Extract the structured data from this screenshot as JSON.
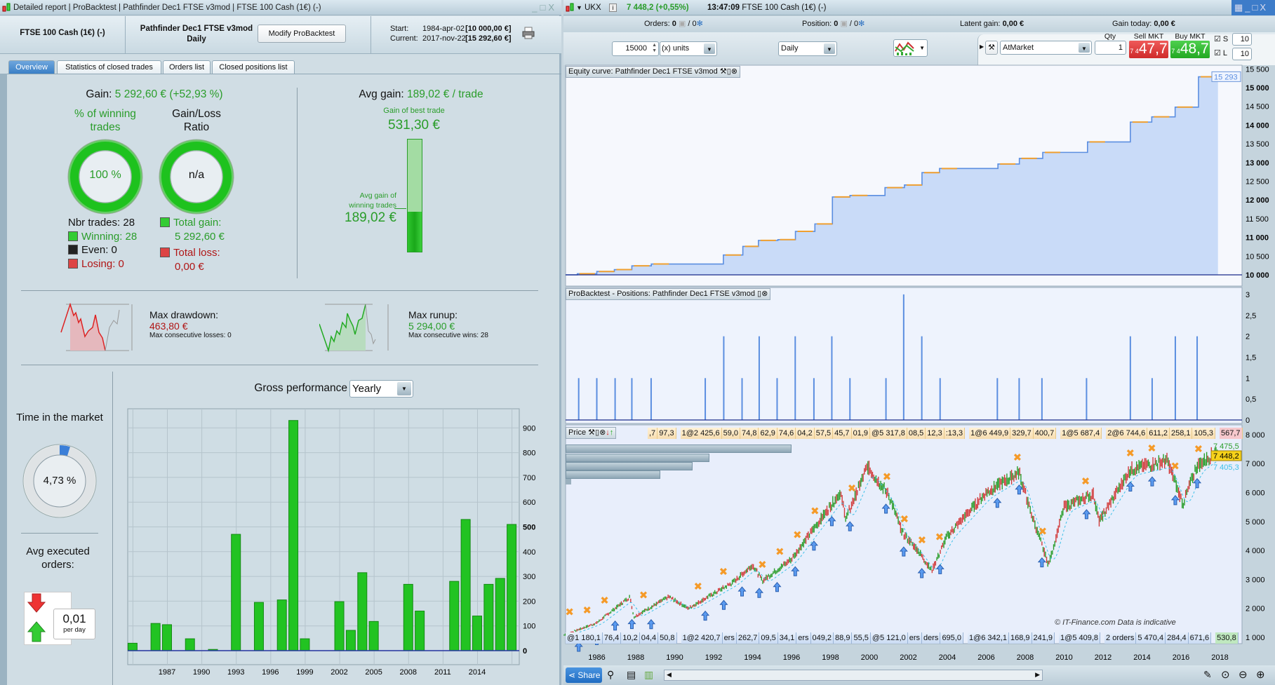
{
  "left_window": {
    "title_parts": [
      "Detailed report",
      "ProBacktest",
      "Pathfinder Dec1 FTSE v3mod",
      "FTSE 100 Cash (1€) (-)"
    ],
    "instrument": "FTSE 100 Cash (1€) (-)",
    "strategy_name": "Pathfinder Dec1 FTSE v3mod",
    "timeframe": "Daily",
    "modify_button": "Modify ProBacktest",
    "start_label": "Start:",
    "start_date": "1984-apr-02",
    "start_value": "[10 000,00 €]",
    "current_label": "Current:",
    "current_date": "2017-nov-22",
    "current_value": "[15 292,60 €]",
    "tabs": [
      "Overview",
      "Statistics of closed trades",
      "Orders list",
      "Closed positions list"
    ],
    "active_tab": "Overview"
  },
  "overview": {
    "gain_label": "Gain:",
    "gain_value": "5 292,60 € (+52,93 %)",
    "winning_pct_title": "% of winning trades",
    "winning_pct": "100 %",
    "winning_fraction": 1.0,
    "ratio_title": "Gain/Loss Ratio",
    "ratio_value": "n/a",
    "nbr_trades": "Nbr trades: 28",
    "winning": "Winning: 28",
    "even": "Even: 0",
    "losing": "Losing: 0",
    "total_gain_label": "Total gain:",
    "total_gain": "5 292,60 €",
    "total_loss_label": "Total loss:",
    "total_loss": "0,00 €",
    "avg_gain_label": "Avg gain:",
    "avg_gain_value": "189,02 € / trade",
    "best_trade_label": "Gain of best trade",
    "best_trade_value": "531,30 €",
    "avg_winning_label": "Avg gain of winning trades",
    "avg_winning_value": "189,02 €",
    "avg_winning_ratio": 0.356,
    "max_drawdown_label": "Max drawdown:",
    "max_drawdown": "463,80 €",
    "max_consec_losses": "Max consecutive losses: 0",
    "max_runup_label": "Max runup:",
    "max_runup": "5 294,00 €",
    "max_consec_wins": "Max consecutive wins: 28",
    "time_market_title": "Time in the market",
    "time_market_value": "4,73 %",
    "time_market_fraction": 0.0473,
    "avg_orders_title": "Avg executed orders:",
    "avg_orders_value": "0,01",
    "avg_orders_unit": "per day",
    "gross_perf_label": "Gross performance",
    "gross_perf_period": "Yearly"
  },
  "right_window": {
    "symbol": "UKX",
    "last_price": "7 448,2 (+0,55%)",
    "time": "13:47:09",
    "instrument": "FTSE 100 Cash (1€) (-)",
    "orders_label": "Orders:",
    "orders_value": "0",
    "orders_total": "/ 0",
    "position_label": "Position:",
    "position_value": "0",
    "position_total": "/ 0",
    "latent_label": "Latent gain:",
    "latent_value": "0,00 €",
    "gain_today_label": "Gain today:",
    "gain_today_value": "0,00 €",
    "units_value": "15000",
    "units_type": "(x) units",
    "timeframe": "Daily",
    "order_type": "AtMarket",
    "qty_label": "Qty",
    "qty_value": "1",
    "sell_label": "Sell MKT",
    "sell_prefix": "7 4",
    "sell_price": "47,7",
    "buy_label": "Buy MKT",
    "buy_prefix": "7 4",
    "buy_price": "48,7",
    "s_label": "S",
    "s_value": "10",
    "l_label": "L",
    "l_value": "10",
    "equity_title": "Equity curve: Pathfinder Dec1 FTSE v3mod",
    "positions_title": "ProBacktest - Positions: Pathfinder Dec1 FTSE v3mod",
    "price_title": "Price",
    "watermark": "© IT-Finance.com Data is indicative",
    "share_label": "Share",
    "colors": {
      "up": "#2a9d2a",
      "down": "#d23b3b",
      "equity_line": "#5b8ee0",
      "equity_fill": "#c9dbf8",
      "orange": "#f0a030"
    }
  },
  "chart_data": [
    {
      "type": "bar",
      "title": "Gross performance (Yearly)",
      "categories": [
        1984,
        1986,
        1987,
        1989,
        1991,
        1993,
        1995,
        1997,
        1998,
        1999,
        2002,
        2003,
        2004,
        2005,
        2008,
        2009,
        2012,
        2013,
        2014,
        2015,
        2016,
        2017
      ],
      "values": [
        30,
        110,
        105,
        48,
        5,
        470,
        195,
        205,
        930,
        48,
        198,
        82,
        315,
        118,
        268,
        160,
        280,
        530,
        140,
        268,
        292,
        510
      ],
      "x_ticks": [
        "1987",
        "1990",
        "1993",
        "1996",
        "1999",
        "2002",
        "2005",
        "2008",
        "2011",
        "2014"
      ],
      "y_ticks": [
        "0",
        "100",
        "200",
        "300",
        "400",
        "500",
        "600",
        "700",
        "800",
        "900"
      ],
      "ylim": [
        -150,
        1000
      ]
    },
    {
      "type": "line",
      "title": "Equity curve",
      "steps": [
        [
          1984.4,
          10000
        ],
        [
          1985.0,
          10030
        ],
        [
          1986.0,
          10090
        ],
        [
          1986.9,
          10140
        ],
        [
          1987.8,
          10240
        ],
        [
          1988.8,
          10290
        ],
        [
          1992.5,
          10530
        ],
        [
          1993.5,
          10760
        ],
        [
          1994.3,
          10920
        ],
        [
          1995.3,
          10940
        ],
        [
          1996.2,
          11160
        ],
        [
          1997.2,
          11360
        ],
        [
          1998.1,
          12080
        ],
        [
          1999.0,
          12120
        ],
        [
          2000.8,
          12330
        ],
        [
          2001.8,
          12400
        ],
        [
          2002.7,
          12730
        ],
        [
          2003.6,
          12840
        ],
        [
          2006.6,
          12960
        ],
        [
          2007.7,
          13110
        ],
        [
          2008.9,
          13270
        ],
        [
          2011.2,
          13550
        ],
        [
          2013.4,
          14080
        ],
        [
          2014.5,
          14220
        ],
        [
          2015.7,
          14480
        ],
        [
          2016.9,
          15290
        ],
        [
          2017.9,
          15290
        ]
      ],
      "y_ticks": [
        "10 000",
        "10 500",
        "11 000",
        "11 500",
        "12 000",
        "12 500",
        "13 000",
        "13 500",
        "14 000",
        "14 500",
        "15 000",
        "15 500"
      ],
      "last_label": "15 293"
    },
    {
      "type": "bar",
      "title": "Positions",
      "x": [
        1985.07,
        1986.0,
        1986.94,
        1987.8,
        1988.79,
        1991.57,
        1992.52,
        1993.46,
        1994.34,
        1995.26,
        1996.19,
        1997.15,
        1998.07,
        1999.0,
        2000.85,
        2001.76,
        2002.69,
        2003.63,
        2006.57,
        2007.69,
        2008.86,
        2011.15,
        2013.4,
        2014.52,
        2015.71,
        2016.83
      ],
      "values": [
        1,
        1,
        1,
        1,
        1,
        1,
        2,
        1,
        2,
        1,
        2,
        1,
        2,
        1,
        1,
        3,
        2,
        1,
        1,
        1,
        1,
        1,
        2,
        1,
        2,
        2
      ],
      "y_ticks": [
        "0",
        "0,5",
        "1",
        "1,5",
        "2",
        "2,5",
        "3"
      ]
    },
    {
      "type": "line",
      "title": "Price",
      "points": [
        [
          1984.2,
          1050
        ],
        [
          1986,
          1500
        ],
        [
          1987.7,
          2400
        ],
        [
          1987.9,
          1700
        ],
        [
          1989.7,
          2400
        ],
        [
          1990.7,
          2000
        ],
        [
          1993,
          2900
        ],
        [
          1994,
          3500
        ],
        [
          1994.5,
          2950
        ],
        [
          1996,
          3700
        ],
        [
          1998.5,
          6000
        ],
        [
          1998.8,
          5100
        ],
        [
          1999.9,
          6900
        ],
        [
          2001,
          5900
        ],
        [
          2001.7,
          4600
        ],
        [
          2002.5,
          4000
        ],
        [
          2003.2,
          3300
        ],
        [
          2004,
          4500
        ],
        [
          2006,
          6000
        ],
        [
          2007.7,
          6700
        ],
        [
          2008.2,
          5500
        ],
        [
          2009.2,
          3500
        ],
        [
          2010,
          5500
        ],
        [
          2011.5,
          5950
        ],
        [
          2011.8,
          5000
        ],
        [
          2013.4,
          6800
        ],
        [
          2015.3,
          7100
        ],
        [
          2016.1,
          5600
        ],
        [
          2016.8,
          6900
        ],
        [
          2017.9,
          7448
        ]
      ],
      "entries": [
        1985.07,
        1986.0,
        1986.94,
        1987.8,
        1988.79,
        1991.57,
        1992.52,
        1993.46,
        1994.34,
        1995.26,
        1996.19,
        1997.15,
        1998.07,
        1999.0,
        2000.85,
        2001.76,
        2002.69,
        2003.63,
        2006.57,
        2007.69,
        2008.86,
        2011.15,
        2013.4,
        2014.52,
        2015.71,
        2016.83
      ],
      "exits": [
        1984.6,
        1985.5,
        1986.4,
        1988.4,
        1991.2,
        1992.5,
        1994.5,
        1995.4,
        1996.3,
        1997.2,
        1999.1,
        2000.9,
        2001.8,
        2002.7,
        2003.6,
        2007.6,
        2008.9,
        2011.1,
        2013.4,
        2014.5,
        2015.7,
        2016.9
      ],
      "x_ticks": [
        "1986",
        "1988",
        "1990",
        "1992",
        "1994",
        "1996",
        "1998",
        "2000",
        "2002",
        "2004",
        "2006",
        "2008",
        "2010",
        "2012",
        "2014",
        "2016",
        "2018"
      ],
      "y_ticks": [
        "1 000",
        "2 000",
        "3 000",
        "4 000",
        "5 000",
        "6 000",
        "7 000",
        "8 000"
      ],
      "price_labels": [
        "7 475,5",
        "7 448,2",
        "7 405,3"
      ],
      "top_orders": [
        [
          ",7",
          "97,3"
        ],
        [
          "1@2 425,6",
          "59,0",
          "74,8",
          "62,9",
          "74,6",
          "04,2",
          "57,5",
          "45,7",
          "01,9",
          "@5 317,8",
          "08,5",
          "12,3",
          ":13,3"
        ],
        [
          "1@6 449,9",
          "329,7",
          "400,7"
        ],
        [
          "1@5 687,4"
        ],
        [
          "2@6 744,6",
          "611,2",
          "258,1",
          "105,3"
        ],
        [
          "567,7"
        ]
      ],
      "bottom_orders": [
        [
          "@1 180,1",
          "76,4",
          "10,2",
          "04,4",
          "50,8"
        ],
        [
          "1@2 420,7",
          "ers",
          "262,7",
          "09,5",
          "34,1",
          "ers",
          "049,2",
          "88,9",
          "55,5",
          "@5 121,0",
          "ers",
          "ders",
          "695,0"
        ],
        [
          "1@6 342,1",
          "168,9",
          "241,9"
        ],
        [
          "1@5 409,8"
        ],
        [
          "2 orders",
          "5 470,4",
          "284,4",
          "671,6"
        ],
        [
          "530,8"
        ]
      ]
    }
  ]
}
